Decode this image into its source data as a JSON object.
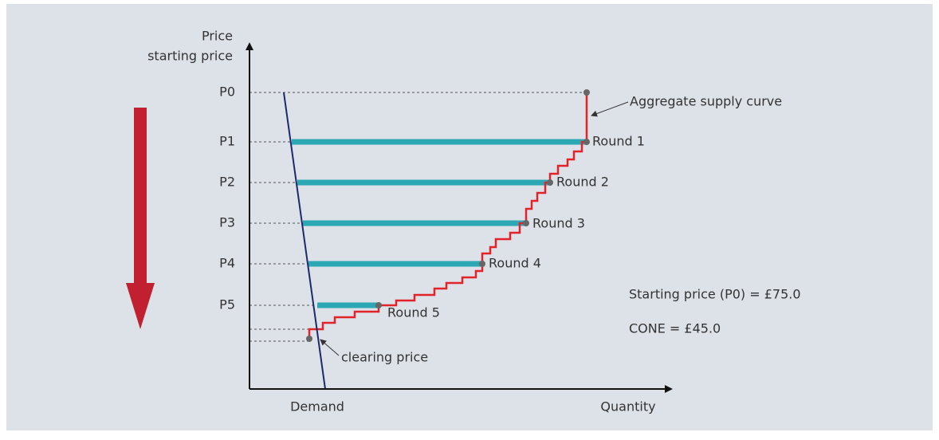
{
  "axes": {
    "y_label_lines": [
      "Price",
      "starting price"
    ],
    "x_label": "Quantity",
    "demand_label": "Demand"
  },
  "price_levels": [
    "P0",
    "P1",
    "P2",
    "P3",
    "P4",
    "P5"
  ],
  "rounds": [
    "Round 1",
    "Round 2",
    "Round 3",
    "Round 4",
    "Round 5"
  ],
  "annotations": {
    "supply": "Aggregate supply curve",
    "clearing": "clearing price",
    "starting_price": "Starting price (P0) = £75.0",
    "cone": "CONE = £45.0"
  }
}
